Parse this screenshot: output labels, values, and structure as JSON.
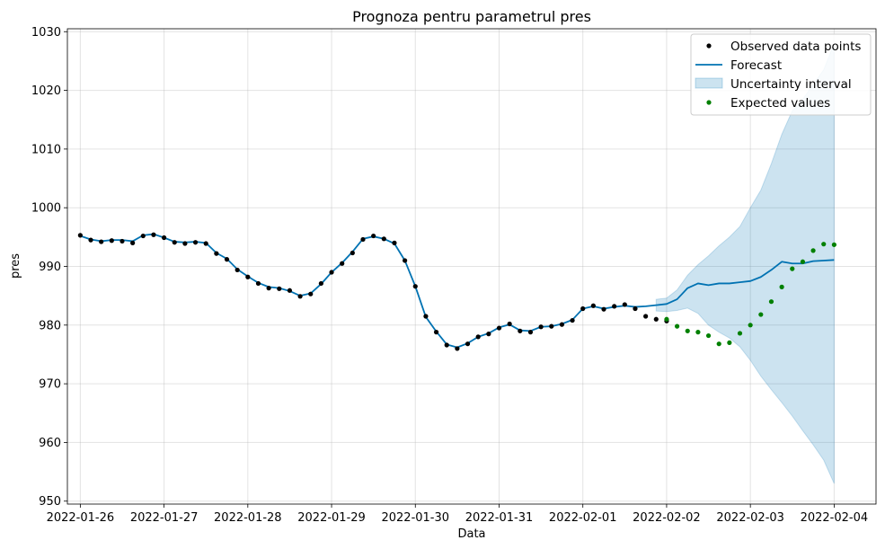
{
  "chart_data": {
    "type": "line",
    "title": "Prognoza pentru parametrul pres",
    "xlabel": "Data",
    "ylabel": "pres",
    "xlim": [
      "2022-01-25T20:18",
      "2022-02-04T12:00"
    ],
    "ylim": [
      949.5,
      1030.5
    ],
    "x_ticks": [
      "2022-01-26",
      "2022-01-27",
      "2022-01-28",
      "2022-01-29",
      "2022-01-30",
      "2022-01-31",
      "2022-02-01",
      "2022-02-02",
      "2022-02-03",
      "2022-02-04"
    ],
    "y_ticks": [
      950,
      960,
      970,
      980,
      990,
      1000,
      1010,
      1020,
      1030
    ],
    "grid": true,
    "legend_position": "upper-right",
    "legend": [
      "Observed data points",
      "Forecast",
      "Uncertainty interval",
      "Expected values"
    ],
    "colors": {
      "observed": "#000000",
      "forecast": "#0072b2",
      "uncertainty": "#0072b2",
      "expected": "#008000"
    },
    "series": [
      {
        "name": "Observed data points",
        "kind": "scatter",
        "x": [
          "2022-01-26T00:00",
          "2022-01-26T03:00",
          "2022-01-26T06:00",
          "2022-01-26T09:00",
          "2022-01-26T12:00",
          "2022-01-26T15:00",
          "2022-01-26T18:00",
          "2022-01-26T21:00",
          "2022-01-27T00:00",
          "2022-01-27T03:00",
          "2022-01-27T06:00",
          "2022-01-27T09:00",
          "2022-01-27T12:00",
          "2022-01-27T15:00",
          "2022-01-27T18:00",
          "2022-01-27T21:00",
          "2022-01-28T00:00",
          "2022-01-28T03:00",
          "2022-01-28T06:00",
          "2022-01-28T09:00",
          "2022-01-28T12:00",
          "2022-01-28T15:00",
          "2022-01-28T18:00",
          "2022-01-28T21:00",
          "2022-01-29T00:00",
          "2022-01-29T03:00",
          "2022-01-29T06:00",
          "2022-01-29T09:00",
          "2022-01-29T12:00",
          "2022-01-29T15:00",
          "2022-01-29T18:00",
          "2022-01-29T21:00",
          "2022-01-30T00:00",
          "2022-01-30T03:00",
          "2022-01-30T06:00",
          "2022-01-30T09:00",
          "2022-01-30T12:00",
          "2022-01-30T15:00",
          "2022-01-30T18:00",
          "2022-01-30T21:00",
          "2022-01-31T00:00",
          "2022-01-31T03:00",
          "2022-01-31T06:00",
          "2022-01-31T09:00",
          "2022-01-31T12:00",
          "2022-01-31T15:00",
          "2022-01-31T18:00",
          "2022-01-31T21:00",
          "2022-02-01T00:00",
          "2022-02-01T03:00",
          "2022-02-01T06:00",
          "2022-02-01T09:00",
          "2022-02-01T12:00",
          "2022-02-01T15:00",
          "2022-02-01T18:00",
          "2022-02-01T21:00",
          "2022-02-02T00:00"
        ],
        "y": [
          995.3,
          994.5,
          994.2,
          994.4,
          994.3,
          994.0,
          995.2,
          995.4,
          994.9,
          994.1,
          993.9,
          994.1,
          993.9,
          992.2,
          991.2,
          989.4,
          988.2,
          987.1,
          986.3,
          986.2,
          985.9,
          984.9,
          985.3,
          987.1,
          989.0,
          990.5,
          992.3,
          994.6,
          995.2,
          994.7,
          994.0,
          991.0,
          986.6,
          981.5,
          978.8,
          976.6,
          976.0,
          976.8,
          978.0,
          978.5,
          979.5,
          980.2,
          979.0,
          978.8,
          979.7,
          979.8,
          980.1,
          980.8,
          982.8,
          983.3,
          982.7,
          983.2,
          983.5,
          982.8,
          981.5,
          981.0,
          980.7
        ]
      },
      {
        "name": "Forecast",
        "kind": "line",
        "x": [
          "2022-01-26T00:00",
          "2022-01-26T03:00",
          "2022-01-26T06:00",
          "2022-01-26T09:00",
          "2022-01-26T12:00",
          "2022-01-26T15:00",
          "2022-01-26T18:00",
          "2022-01-26T21:00",
          "2022-01-27T00:00",
          "2022-01-27T03:00",
          "2022-01-27T06:00",
          "2022-01-27T09:00",
          "2022-01-27T12:00",
          "2022-01-27T15:00",
          "2022-01-27T18:00",
          "2022-01-27T21:00",
          "2022-01-28T00:00",
          "2022-01-28T03:00",
          "2022-01-28T06:00",
          "2022-01-28T09:00",
          "2022-01-28T12:00",
          "2022-01-28T15:00",
          "2022-01-28T18:00",
          "2022-01-28T21:00",
          "2022-01-29T00:00",
          "2022-01-29T03:00",
          "2022-01-29T06:00",
          "2022-01-29T09:00",
          "2022-01-29T12:00",
          "2022-01-29T15:00",
          "2022-01-29T18:00",
          "2022-01-29T21:00",
          "2022-01-30T00:00",
          "2022-01-30T03:00",
          "2022-01-30T06:00",
          "2022-01-30T09:00",
          "2022-01-30T12:00",
          "2022-01-30T15:00",
          "2022-01-30T18:00",
          "2022-01-30T21:00",
          "2022-01-31T00:00",
          "2022-01-31T03:00",
          "2022-01-31T06:00",
          "2022-01-31T09:00",
          "2022-01-31T12:00",
          "2022-01-31T15:00",
          "2022-01-31T18:00",
          "2022-01-31T21:00",
          "2022-02-01T00:00",
          "2022-02-01T03:00",
          "2022-02-01T06:00",
          "2022-02-01T09:00",
          "2022-02-01T12:00",
          "2022-02-01T15:00",
          "2022-02-01T18:00",
          "2022-02-01T21:00",
          "2022-02-02T00:00",
          "2022-02-02T03:00",
          "2022-02-02T06:00",
          "2022-02-02T09:00",
          "2022-02-02T12:00",
          "2022-02-02T15:00",
          "2022-02-02T18:00",
          "2022-02-02T21:00",
          "2022-02-03T00:00",
          "2022-02-03T03:00",
          "2022-02-03T06:00",
          "2022-02-03T09:00",
          "2022-02-03T12:00",
          "2022-02-03T15:00",
          "2022-02-03T18:00",
          "2022-02-03T21:00",
          "2022-02-04T00:00"
        ],
        "y": [
          995.2,
          994.6,
          994.3,
          994.5,
          994.5,
          994.3,
          995.3,
          995.5,
          994.9,
          994.2,
          994.1,
          994.2,
          994.0,
          992.3,
          991.3,
          989.5,
          988.3,
          987.2,
          986.5,
          986.3,
          985.8,
          985.0,
          985.4,
          987.0,
          989.0,
          990.6,
          992.5,
          994.7,
          995.1,
          994.7,
          993.9,
          991.0,
          986.6,
          981.4,
          978.9,
          976.7,
          976.2,
          976.9,
          978.0,
          978.6,
          979.6,
          980.1,
          979.1,
          979.0,
          979.7,
          979.8,
          980.2,
          980.9,
          982.8,
          983.2,
          982.8,
          983.1,
          983.3,
          983.1,
          983.2,
          983.4,
          983.6,
          984.4,
          986.3,
          987.1,
          986.8,
          987.1,
          987.1,
          987.3,
          987.5,
          988.2,
          989.4,
          990.8,
          990.5,
          990.5,
          990.9,
          991.0,
          991.1
        ]
      },
      {
        "name": "Uncertainty interval",
        "kind": "band",
        "x": [
          "2022-02-01T21:00",
          "2022-02-02T00:00",
          "2022-02-02T03:00",
          "2022-02-02T06:00",
          "2022-02-02T09:00",
          "2022-02-02T12:00",
          "2022-02-02T15:00",
          "2022-02-02T18:00",
          "2022-02-02T21:00",
          "2022-02-03T00:00",
          "2022-02-03T03:00",
          "2022-02-03T06:00",
          "2022-02-03T09:00",
          "2022-02-03T12:00",
          "2022-02-03T15:00",
          "2022-02-03T18:00",
          "2022-02-03T21:00",
          "2022-02-04T00:00"
        ],
        "lower": [
          982.4,
          982.3,
          982.5,
          982.9,
          982.0,
          980.0,
          978.8,
          977.8,
          976.3,
          974.0,
          971.3,
          969.0,
          966.8,
          964.5,
          962.0,
          959.6,
          957.0,
          953.0
        ],
        "upper": [
          984.4,
          984.6,
          986.0,
          988.5,
          990.3,
          991.8,
          993.5,
          995.0,
          996.8,
          1000.0,
          1003.0,
          1007.5,
          1012.5,
          1016.5,
          1018.5,
          1021.0,
          1023.5,
          1028.0
        ]
      },
      {
        "name": "Expected values",
        "kind": "scatter",
        "x": [
          "2022-02-02T00:00",
          "2022-02-02T03:00",
          "2022-02-02T06:00",
          "2022-02-02T09:00",
          "2022-02-02T12:00",
          "2022-02-02T15:00",
          "2022-02-02T18:00",
          "2022-02-02T21:00",
          "2022-02-03T00:00",
          "2022-02-03T03:00",
          "2022-02-03T06:00",
          "2022-02-03T09:00",
          "2022-02-03T12:00",
          "2022-02-03T15:00",
          "2022-02-03T18:00",
          "2022-02-03T21:00",
          "2022-02-04T00:00"
        ],
        "y": [
          981.0,
          979.8,
          979.0,
          978.8,
          978.2,
          976.8,
          977.0,
          978.6,
          980.0,
          981.8,
          984.0,
          986.5,
          989.6,
          990.8,
          992.7,
          993.8,
          993.7
        ]
      }
    ]
  }
}
